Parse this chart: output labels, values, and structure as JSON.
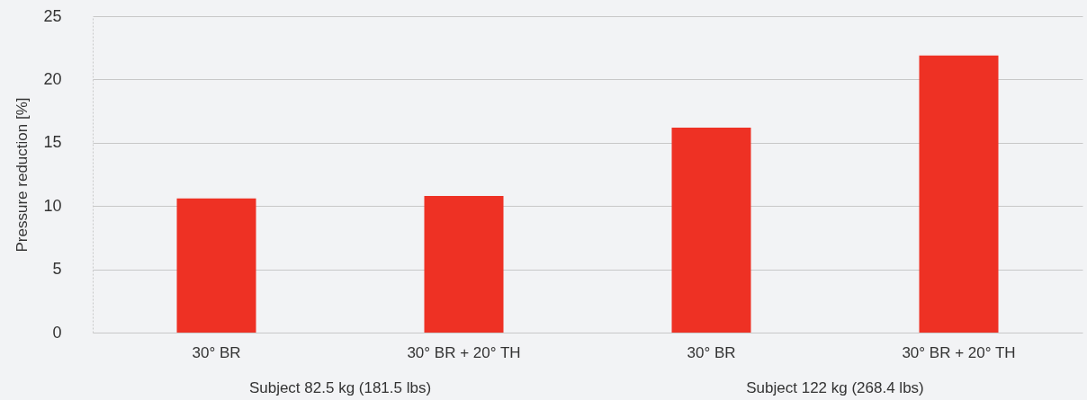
{
  "chart_data": {
    "type": "bar",
    "ylabel": "Pressure reduction [%]",
    "categories": [
      "30° BR",
      "30° BR + 20° TH",
      "30° BR",
      "30° BR + 20° TH"
    ],
    "values": [
      10.6,
      10.8,
      16.2,
      21.9
    ],
    "color": "#ee3124",
    "ylim": [
      0,
      25
    ],
    "yticks": [
      0,
      5,
      10,
      15,
      20,
      25
    ],
    "grid": "y",
    "annotations": [
      "Subject 82.5 kg (181.5 lbs)",
      "Subject 122 kg (268.4 lbs)"
    ]
  }
}
